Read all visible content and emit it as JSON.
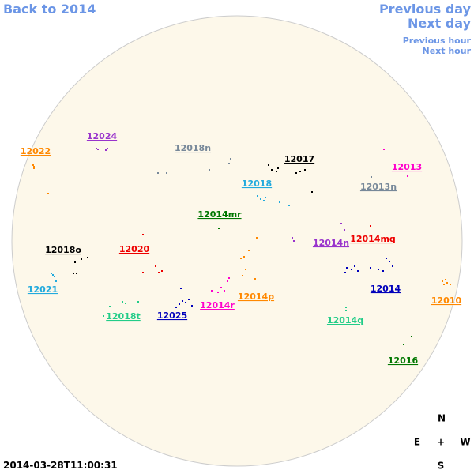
{
  "nav": {
    "back": "Back to 2014",
    "prev_day": "Previous day",
    "next_day": "Next day",
    "prev_hour": "Previous hour",
    "next_hour": "Next hour"
  },
  "regions": [
    {
      "label": "12024",
      "color": "#9933cc"
    },
    {
      "label": "12022",
      "color": "#ff8800"
    },
    {
      "label": "12018n",
      "color": "#778899"
    },
    {
      "label": "12017",
      "color": "#000000"
    },
    {
      "label": "12013",
      "color": "#ff00cc"
    },
    {
      "label": "12018",
      "color": "#22aadd"
    },
    {
      "label": "12013n",
      "color": "#778899"
    },
    {
      "label": "12014mr",
      "color": "#007700"
    },
    {
      "label": "12014mq",
      "color": "#ee0000"
    },
    {
      "label": "12014n",
      "color": "#9933cc"
    },
    {
      "label": "12020",
      "color": "#ee0000"
    },
    {
      "label": "12018o",
      "color": "#000000"
    },
    {
      "label": "12021",
      "color": "#22aadd"
    },
    {
      "label": "12014",
      "color": "#0000bb"
    },
    {
      "label": "12014p",
      "color": "#ff8800"
    },
    {
      "label": "12010",
      "color": "#ff8800"
    },
    {
      "label": "12014r",
      "color": "#ff00cc"
    },
    {
      "label": "12018t",
      "color": "#22cc88"
    },
    {
      "label": "12025",
      "color": "#0000bb"
    },
    {
      "label": "12014q",
      "color": "#22cc88"
    },
    {
      "label": "12016",
      "color": "#007700"
    }
  ],
  "timestamp": "2014-03-28T11:00:31",
  "compass": {
    "n": "N",
    "e": "E",
    "center": "+",
    "w": "W",
    "s": "S"
  }
}
